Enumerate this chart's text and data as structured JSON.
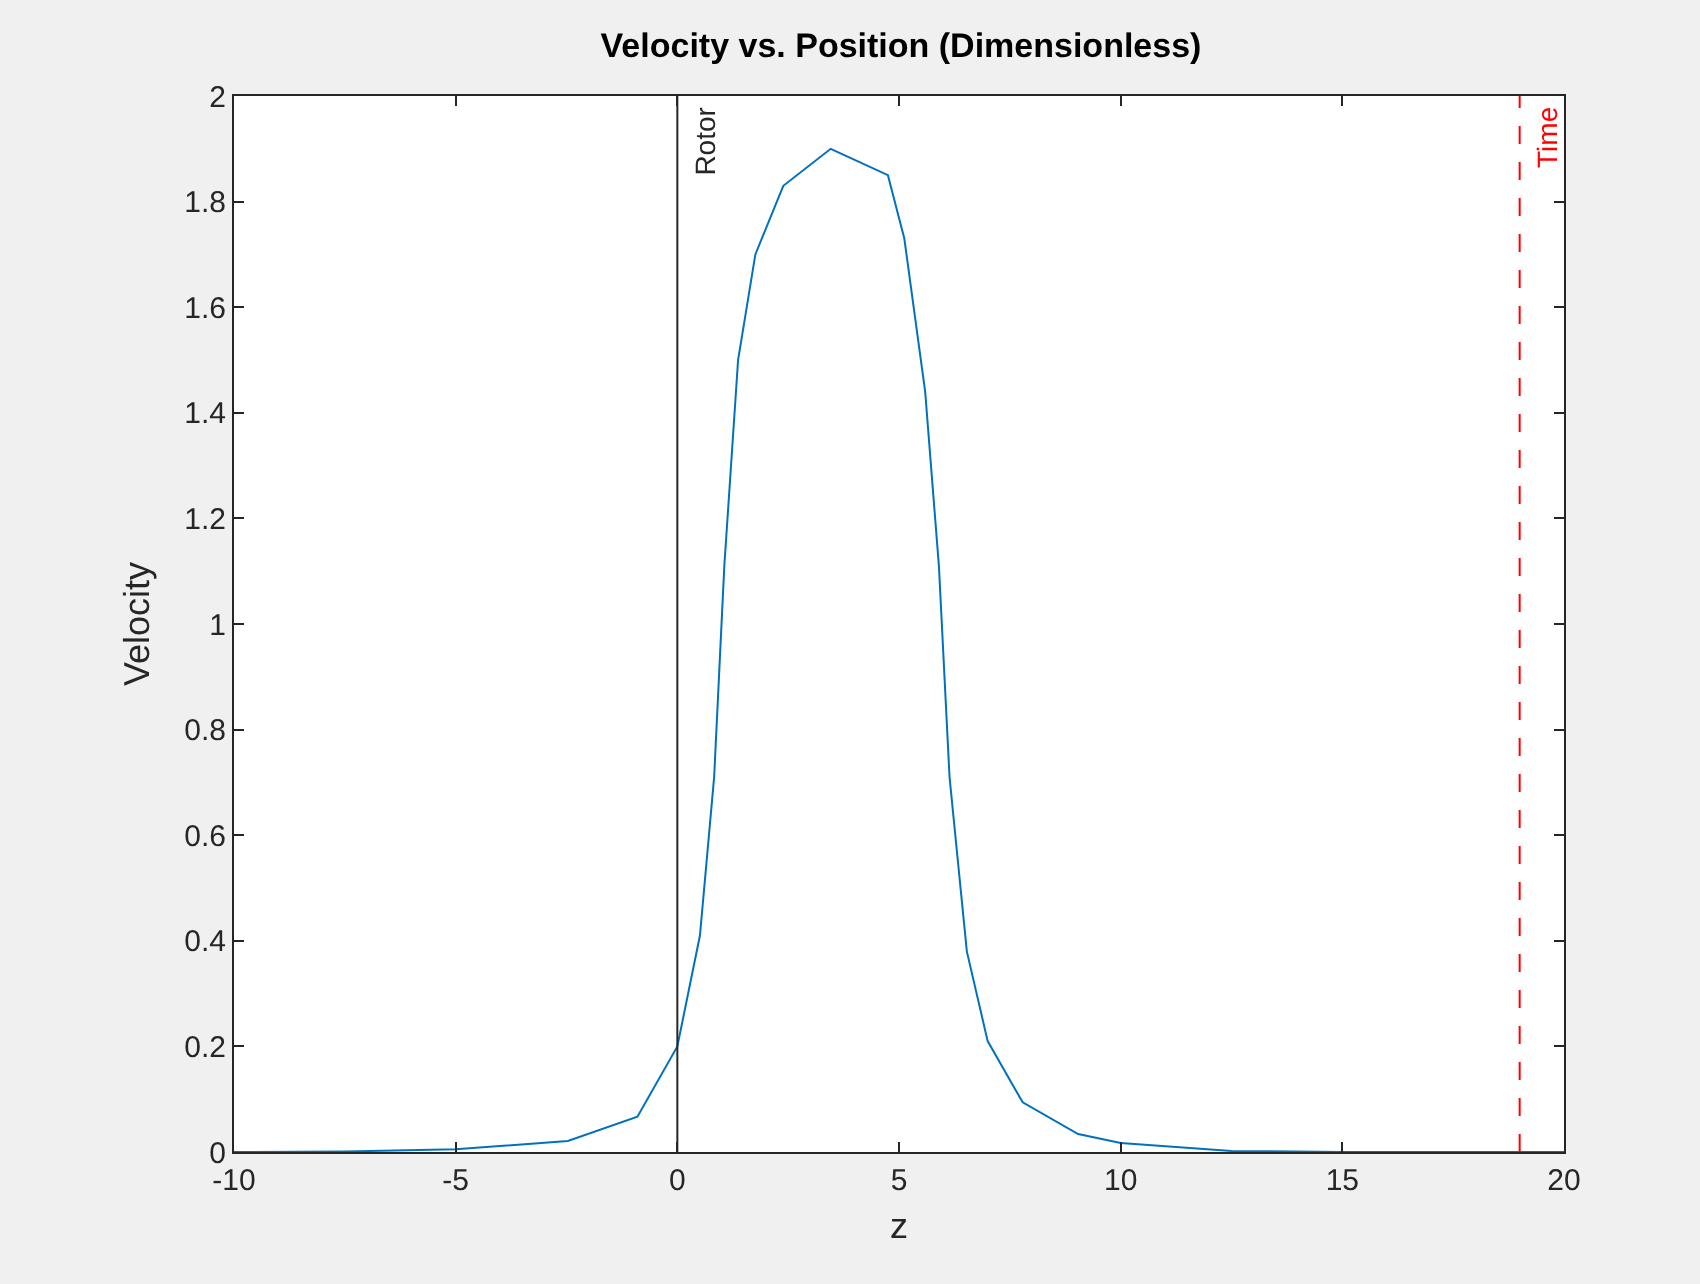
{
  "chart_data": {
    "type": "line",
    "title": "Velocity vs. Position (Dimensionless)",
    "xlabel": "z",
    "ylabel": "Velocity",
    "x": [
      -10,
      -7.5,
      -5,
      -2.47,
      -0.9,
      0,
      0.51,
      0.83,
      1.06,
      1.37,
      1.76,
      2.39,
      3.46,
      4.75,
      5.12,
      5.59,
      5.9,
      6.14,
      6.53,
      7.0,
      7.79,
      9.04,
      10,
      12.5,
      15,
      20
    ],
    "series": [
      {
        "color": "#0072bd",
        "values": [
          0,
          0.001,
          0.005,
          0.021,
          0.067,
          0.2,
          0.41,
          0.71,
          1.11,
          1.5,
          1.7,
          1.83,
          1.9,
          1.85,
          1.73,
          1.44,
          1.11,
          0.71,
          0.38,
          0.21,
          0.094,
          0.034,
          0.017,
          0.002,
          0,
          0
        ]
      }
    ],
    "xlim": [
      -10,
      20
    ],
    "xticks": [
      -10,
      -5,
      0,
      5,
      10,
      15,
      20
    ],
    "ylim": [
      0,
      2
    ],
    "yticks": [
      0,
      0.2,
      0.4,
      0.6,
      0.8,
      1,
      1.2,
      1.4,
      1.6,
      1.8,
      2
    ],
    "grid": false,
    "marker": "none",
    "line_style": "solid",
    "ref_lines": [
      {
        "axis": "x",
        "value": 0,
        "label": "Rotor",
        "color": "#262626",
        "line_style": "solid"
      },
      {
        "axis": "x",
        "value": 19,
        "label": "Time",
        "color": "#ff0000",
        "line_style": "dashed"
      }
    ]
  }
}
